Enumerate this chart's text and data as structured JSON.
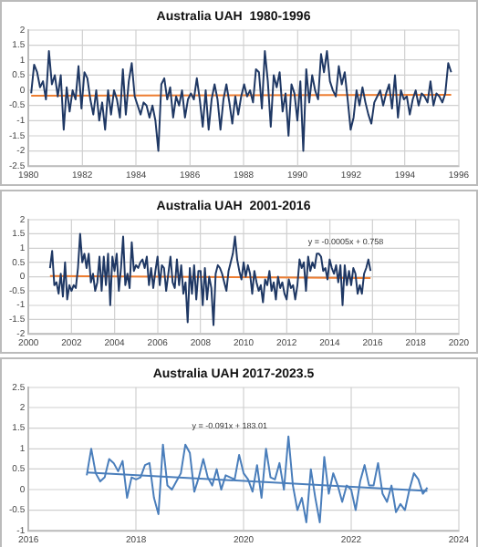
{
  "chart_data": [
    {
      "type": "line",
      "title": "Australia UAH  1980-1996",
      "xlim": [
        1980,
        1996
      ],
      "xticks": [
        1980,
        1982,
        1984,
        1986,
        1988,
        1990,
        1992,
        1994,
        1996
      ],
      "ylim": [
        -2.5,
        2
      ],
      "yticks": [
        -2.5,
        -2,
        -1.5,
        -1,
        -0.5,
        0,
        0.5,
        1,
        1.5,
        2
      ],
      "grid": true,
      "legend": false,
      "marker": "none",
      "series": [
        {
          "color": "#1f3864",
          "x": [
            1980.1,
            1980.21,
            1980.32,
            1980.43,
            1980.54,
            1980.65,
            1980.76,
            1980.87,
            1980.98,
            1981.09,
            1981.2,
            1981.31,
            1981.42,
            1981.53,
            1981.64,
            1981.75,
            1981.86,
            1981.97,
            1982.08,
            1982.19,
            1982.3,
            1982.41,
            1982.52,
            1982.63,
            1982.74,
            1982.85,
            1982.96,
            1983.07,
            1983.18,
            1983.29,
            1983.4,
            1983.51,
            1983.62,
            1983.73,
            1983.84,
            1983.95,
            1984.06,
            1984.17,
            1984.28,
            1984.39,
            1984.5,
            1984.61,
            1984.72,
            1984.83,
            1984.94,
            1985.05,
            1985.16,
            1985.27,
            1985.38,
            1985.49,
            1985.6,
            1985.71,
            1985.82,
            1985.93,
            1986.04,
            1986.15,
            1986.26,
            1986.37,
            1986.48,
            1986.59,
            1986.7,
            1986.81,
            1986.92,
            1987.03,
            1987.14,
            1987.25,
            1987.36,
            1987.47,
            1987.58,
            1987.69,
            1987.8,
            1987.91,
            1988.02,
            1988.13,
            1988.24,
            1988.35,
            1988.46,
            1988.57,
            1988.68,
            1988.79,
            1988.9,
            1989.01,
            1989.12,
            1989.23,
            1989.34,
            1989.45,
            1989.56,
            1989.67,
            1989.78,
            1989.89,
            1990.0,
            1990.11,
            1990.22,
            1990.33,
            1990.44,
            1990.55,
            1990.66,
            1990.77,
            1990.88,
            1990.99,
            1991.1,
            1991.21,
            1991.32,
            1991.43,
            1991.54,
            1991.65,
            1991.76,
            1991.87,
            1991.98,
            1992.09,
            1992.2,
            1992.31,
            1992.42,
            1992.53,
            1992.64,
            1992.75,
            1992.86,
            1992.97,
            1993.08,
            1993.19,
            1993.3,
            1993.41,
            1993.52,
            1993.63,
            1993.74,
            1993.85,
            1993.96,
            1994.07,
            1994.18,
            1994.29,
            1994.4,
            1994.51,
            1994.62,
            1994.73,
            1994.84,
            1994.95,
            1995.06,
            1995.17,
            1995.28,
            1995.39,
            1995.5,
            1995.61,
            1995.72
          ],
          "values": [
            -0.1,
            0.85,
            0.6,
            0.1,
            0.3,
            -0.3,
            1.3,
            0.2,
            0.5,
            -0.2,
            0.5,
            -1.3,
            0.1,
            -0.7,
            0.0,
            -0.3,
            0.8,
            -0.6,
            0.6,
            0.4,
            -0.3,
            -0.8,
            0.0,
            -1.0,
            -0.4,
            -1.3,
            0.0,
            -0.8,
            0.0,
            -0.3,
            -0.9,
            0.7,
            -0.8,
            0.3,
            0.9,
            -0.2,
            -0.5,
            -0.8,
            -0.4,
            -0.5,
            -0.9,
            -0.5,
            -1.0,
            -2.0,
            0.2,
            0.4,
            -0.3,
            0.1,
            -0.9,
            -0.2,
            -0.5,
            0.0,
            -0.9,
            -0.3,
            -0.1,
            -0.3,
            0.4,
            -0.3,
            -1.2,
            0.0,
            -1.3,
            -0.3,
            0.2,
            -0.3,
            -1.3,
            -0.3,
            0.2,
            -0.4,
            -1.1,
            -0.2,
            -0.8,
            -0.2,
            0.2,
            -0.2,
            0.0,
            -0.4,
            0.7,
            0.6,
            -0.6,
            1.3,
            0.3,
            -1.2,
            0.5,
            0.1,
            0.6,
            -0.7,
            -0.1,
            -1.5,
            0.2,
            -0.1,
            -1.0,
            0.3,
            -2.0,
            0.7,
            -0.4,
            0.5,
            0.0,
            -0.3,
            1.2,
            0.6,
            1.3,
            0.3,
            0.0,
            -0.2,
            0.8,
            0.2,
            0.6,
            -0.3,
            -1.3,
            -0.9,
            0.0,
            -0.5,
            0.1,
            -0.4,
            -0.8,
            -1.1,
            -0.4,
            -0.2,
            0.0,
            -0.5,
            -0.1,
            0.2,
            -0.6,
            0.5,
            -0.9,
            0.0,
            -0.3,
            -0.2,
            -0.8,
            -0.3,
            0.0,
            -0.5,
            -0.1,
            -0.2,
            -0.4,
            0.3,
            -0.5,
            -0.1,
            -0.2,
            -0.4,
            -0.1,
            0.9,
            0.6
          ]
        },
        {
          "type": "line",
          "color": "#ed7d31",
          "x": [
            1980.1,
            1995.72
          ],
          "values": [
            -0.18,
            -0.15
          ]
        }
      ]
    },
    {
      "type": "line",
      "title": "Australia UAH  2001-2016",
      "xlim": [
        2000,
        2020
      ],
      "xticks": [
        2000,
        2002,
        2004,
        2006,
        2008,
        2010,
        2012,
        2014,
        2016,
        2018,
        2020
      ],
      "ylim": [
        -2,
        2
      ],
      "yticks": [
        -2,
        -1.5,
        -1,
        -0.5,
        0,
        0.5,
        1,
        1.5,
        2
      ],
      "grid": true,
      "legend": false,
      "marker": "none",
      "annotations": [
        "y = -0.0005x + 0.758"
      ],
      "series": [
        {
          "color": "#1f3864",
          "x": [
            2001.0,
            2001.1,
            2001.2,
            2001.3,
            2001.4,
            2001.5,
            2001.6,
            2001.7,
            2001.8,
            2001.9,
            2002.0,
            2002.1,
            2002.2,
            2002.3,
            2002.4,
            2002.5,
            2002.6,
            2002.7,
            2002.8,
            2002.9,
            2003.0,
            2003.1,
            2003.2,
            2003.3,
            2003.4,
            2003.5,
            2003.6,
            2003.7,
            2003.8,
            2003.9,
            2004.0,
            2004.1,
            2004.2,
            2004.3,
            2004.4,
            2004.5,
            2004.6,
            2004.7,
            2004.8,
            2004.9,
            2005.0,
            2005.1,
            2005.2,
            2005.3,
            2005.4,
            2005.5,
            2005.6,
            2005.7,
            2005.8,
            2005.9,
            2006.0,
            2006.1,
            2006.2,
            2006.3,
            2006.4,
            2006.5,
            2006.6,
            2006.7,
            2006.8,
            2006.9,
            2007.0,
            2007.1,
            2007.2,
            2007.3,
            2007.4,
            2007.5,
            2007.6,
            2007.7,
            2007.8,
            2007.9,
            2008.0,
            2008.1,
            2008.2,
            2008.3,
            2008.4,
            2008.5,
            2008.6,
            2008.7,
            2008.8,
            2008.9,
            2009.0,
            2009.1,
            2009.2,
            2009.3,
            2009.4,
            2009.5,
            2009.6,
            2009.7,
            2009.8,
            2009.9,
            2010.0,
            2010.1,
            2010.2,
            2010.3,
            2010.4,
            2010.5,
            2010.6,
            2010.7,
            2010.8,
            2010.9,
            2011.0,
            2011.1,
            2011.2,
            2011.3,
            2011.4,
            2011.5,
            2011.6,
            2011.7,
            2011.8,
            2011.9,
            2012.0,
            2012.1,
            2012.2,
            2012.3,
            2012.4,
            2012.5,
            2012.6,
            2012.7,
            2012.8,
            2012.9,
            2013.0,
            2013.1,
            2013.2,
            2013.3,
            2013.4,
            2013.5,
            2013.6,
            2013.7,
            2013.8,
            2013.9,
            2014.0,
            2014.1,
            2014.2,
            2014.3,
            2014.4,
            2014.5,
            2014.6,
            2014.7,
            2014.8,
            2014.9,
            2015.0,
            2015.1,
            2015.2,
            2015.3,
            2015.4,
            2015.5,
            2015.6,
            2015.7,
            2015.8,
            2015.9
          ],
          "values": [
            0.3,
            0.9,
            -0.3,
            -0.2,
            -0.6,
            0.1,
            -0.7,
            0.5,
            -0.8,
            -0.3,
            -0.5,
            -0.3,
            -0.4,
            0.3,
            1.5,
            0.5,
            0.8,
            0.3,
            0.8,
            -0.2,
            0.1,
            -0.5,
            -0.2,
            0.7,
            -0.5,
            0.7,
            -0.3,
            0.8,
            -1.0,
            0.7,
            0.2,
            0.8,
            -0.5,
            0.3,
            1.4,
            -0.3,
            0.1,
            -0.4,
            1.2,
            0.2,
            0.4,
            0.3,
            0.5,
            0.6,
            0.3,
            0.7,
            -0.3,
            0.3,
            -0.4,
            0.2,
            0.7,
            -0.3,
            0.4,
            0.3,
            -0.5,
            0.1,
            0.7,
            -0.2,
            -0.4,
            0.6,
            -0.3,
            0.4,
            -0.6,
            -0.2,
            -1.6,
            0.3,
            -0.6,
            0.4,
            -0.8,
            0.2,
            0.2,
            -1.0,
            0.3,
            -0.8,
            0.0,
            -0.4,
            -1.7,
            0.1,
            0.4,
            0.3,
            0.1,
            -0.2,
            -0.5,
            0.2,
            0.5,
            0.8,
            1.4,
            0.6,
            0.2,
            -0.1,
            0.5,
            0.0,
            0.4,
            0.1,
            -0.6,
            0.2,
            -0.2,
            -0.5,
            -0.3,
            -0.9,
            -0.1,
            -0.3,
            0.2,
            -0.5,
            -0.2,
            -0.8,
            0.0,
            -0.4,
            -0.2,
            -0.6,
            -0.8,
            -0.1,
            -0.4,
            -0.3,
            -0.8,
            -0.3,
            0.6,
            0.3,
            0.5,
            -0.5,
            0.7,
            0.2,
            0.5,
            0.3,
            0.8,
            0.8,
            0.7,
            0.2,
            0.3,
            -0.1,
            0.6,
            0.3,
            0.1,
            0.4,
            -0.2,
            0.4,
            -1.0,
            0.4,
            -0.3,
            0.2,
            -0.3,
            0.3,
            0.1,
            -0.6,
            -0.3,
            -0.6,
            0.1,
            0.3,
            0.6,
            0.2
          ]
        },
        {
          "type": "line",
          "color": "#ed7d31",
          "x": [
            2001.0,
            2015.9
          ],
          "values": [
            0.02,
            -0.05
          ]
        }
      ]
    },
    {
      "type": "line",
      "title": "Australia UAH 2017-2023.5",
      "xlim": [
        "2016",
        "2024"
      ],
      "xticks": [
        "2016",
        "2018",
        "2020",
        "2022",
        "2024"
      ],
      "ylim": [
        -1,
        2.5
      ],
      "yticks": [
        -1,
        -0.5,
        0,
        0.5,
        1,
        1.5,
        2,
        2.5
      ],
      "grid": true,
      "legend": false,
      "marker": "none",
      "annotations": [
        "y = -0.091x + 183.01"
      ],
      "series": [
        {
          "color": "#4a7ebb",
          "x": [
            "2017-02",
            "2017-03",
            "2017-04",
            "2017-05",
            "2017-06",
            "2017-07",
            "2017-08",
            "2017-09",
            "2017-10",
            "2017-11",
            "2017-12",
            "2018-01",
            "2018-02",
            "2018-03",
            "2018-04",
            "2018-05",
            "2018-06",
            "2018-07",
            "2018-08",
            "2018-09",
            "2018-10",
            "2018-11",
            "2018-12",
            "2019-01",
            "2019-02",
            "2019-03",
            "2019-04",
            "2019-05",
            "2019-06",
            "2019-07",
            "2019-08",
            "2019-09",
            "2019-10",
            "2019-11",
            "2019-12",
            "2020-01",
            "2020-02",
            "2020-03",
            "2020-04",
            "2020-05",
            "2020-06",
            "2020-07",
            "2020-08",
            "2020-09",
            "2020-10",
            "2020-11",
            "2020-12",
            "2021-01",
            "2021-02",
            "2021-03",
            "2021-04",
            "2021-05",
            "2021-06",
            "2021-07",
            "2021-08",
            "2021-09",
            "2021-10",
            "2021-11",
            "2021-12",
            "2022-01",
            "2022-02",
            "2022-03",
            "2022-04",
            "2022-05",
            "2022-06",
            "2022-07",
            "2022-08",
            "2022-09",
            "2022-10",
            "2022-11",
            "2022-12",
            "2023-01",
            "2023-02",
            "2023-03",
            "2023-04",
            "2023-05",
            "2023-06"
          ],
          "values": [
            0.35,
            1.0,
            0.4,
            0.2,
            0.3,
            0.75,
            0.65,
            0.45,
            0.7,
            -0.2,
            0.3,
            0.25,
            0.3,
            0.6,
            0.65,
            -0.2,
            -0.6,
            1.1,
            0.1,
            0.0,
            0.2,
            0.4,
            1.1,
            0.9,
            -0.05,
            0.3,
            0.75,
            0.3,
            0.1,
            0.5,
            0.0,
            0.35,
            0.3,
            0.25,
            0.85,
            0.4,
            0.25,
            -0.05,
            0.6,
            -0.2,
            1.0,
            0.3,
            0.25,
            0.65,
            0.0,
            1.3,
            0.1,
            -0.5,
            -0.2,
            -0.8,
            0.5,
            -0.2,
            -0.8,
            0.8,
            -0.1,
            0.4,
            0.1,
            -0.3,
            0.1,
            0.0,
            -0.5,
            0.2,
            0.6,
            0.1,
            0.1,
            0.65,
            -0.1,
            -0.3,
            0.1,
            -0.55,
            -0.35,
            -0.5,
            0.0,
            0.4,
            0.25,
            -0.1,
            0.05
          ]
        },
        {
          "type": "line",
          "color": "#4a7ebb",
          "x": [
            "2017-02",
            "2023-06"
          ],
          "values": [
            0.42,
            -0.03
          ]
        }
      ]
    }
  ]
}
